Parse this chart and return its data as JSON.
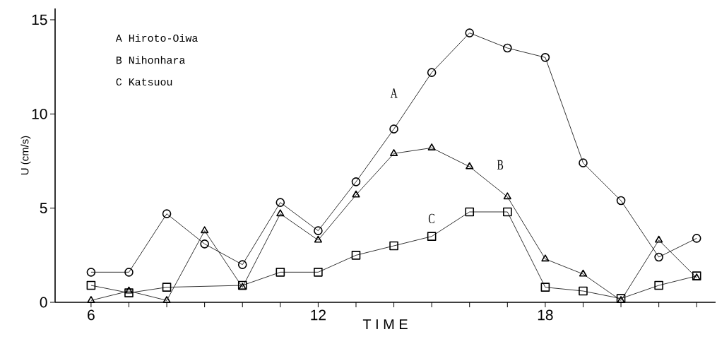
{
  "chart_data": {
    "type": "line",
    "xlabel": "T I M E",
    "ylabel": "U (cm/s)",
    "x": [
      6,
      7,
      8,
      9,
      10,
      11,
      12,
      13,
      14,
      15,
      16,
      17,
      18,
      19,
      20,
      21,
      22
    ],
    "series": [
      {
        "color": "#000000",
        "marker": "circle",
        "values": [
          1.6,
          1.6,
          4.7,
          3.1,
          2.0,
          5.3,
          3.8,
          6.4,
          9.2,
          12.2,
          14.3,
          13.5,
          13.0,
          7.4,
          5.4,
          2.4,
          3.4
        ]
      },
      {
        "color": "#000000",
        "marker": "triangle",
        "values": [
          0.1,
          0.6,
          0.1,
          3.8,
          0.8,
          4.7,
          3.3,
          5.7,
          7.9,
          8.2,
          7.2,
          5.6,
          2.3,
          1.5,
          0.1,
          3.3,
          1.3
        ]
      },
      {
        "color": "#000000",
        "marker": "square",
        "values": [
          0.9,
          0.5,
          0.8,
          null,
          0.9,
          1.6,
          1.6,
          2.5,
          3.0,
          3.5,
          4.8,
          4.8,
          0.8,
          0.6,
          0.2,
          0.9,
          1.4
        ]
      }
    ],
    "xlim": [
      5.05,
      22.5
    ],
    "ylim": [
      0,
      15.6
    ],
    "xticks": [
      6,
      {
        "value": 7,
        "label": null
      },
      {
        "value": 8,
        "label": null
      },
      {
        "value": 9,
        "label": null
      },
      {
        "value": 10,
        "label": null
      },
      {
        "value": 11,
        "label": null
      },
      12,
      {
        "value": 13,
        "label": null
      },
      {
        "value": 14,
        "label": null
      },
      {
        "value": 15,
        "label": null
      },
      {
        "value": 16,
        "label": null
      },
      {
        "value": 17,
        "label": null
      },
      18,
      {
        "value": 19,
        "label": null
      },
      {
        "value": 20,
        "label": null
      },
      {
        "value": 21,
        "label": null
      },
      {
        "value": 22,
        "label": null
      }
    ],
    "yticks": [
      0,
      5,
      10,
      15
    ],
    "grid": false,
    "annotations": [
      "A  Hiroto-Oiwa",
      "B  Nihonhara",
      "C  Katsuou",
      "A",
      "B",
      "C"
    ]
  }
}
